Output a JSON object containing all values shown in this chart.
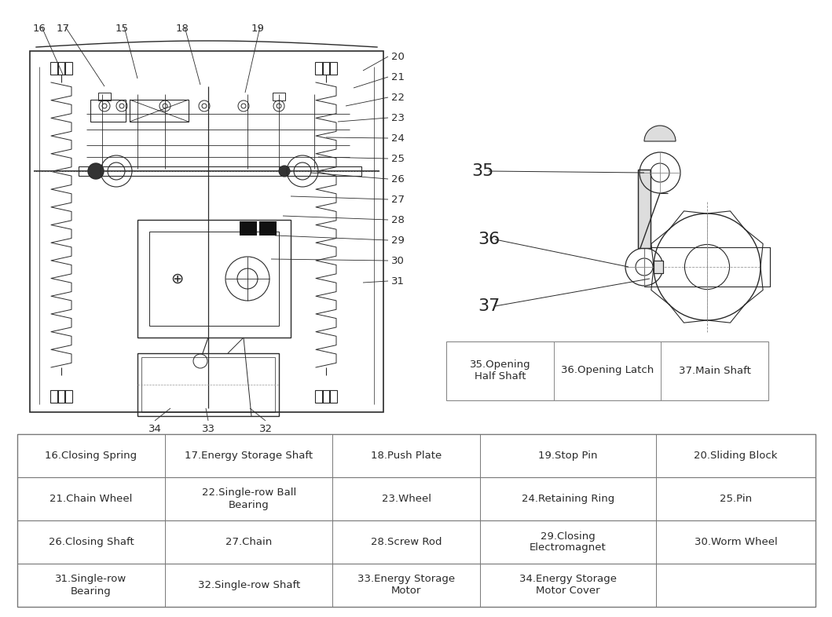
{
  "bg_color": "#ffffff",
  "line_color": "#2a2a2a",
  "table_border_color": "#777777",
  "fig_width": 10.59,
  "fig_height": 7.86,
  "table": {
    "rows": [
      [
        "16.Closing Spring",
        "17.Energy Storage Shaft",
        "18.Push Plate",
        "19.Stop Pin",
        "20.Sliding Block"
      ],
      [
        "21.Chain Wheel",
        "22.Single-row Ball\nBearing",
        "23.Wheel",
        "24.Retaining Ring",
        "25.Pin"
      ],
      [
        "26.Closing Shaft",
        "27.Chain",
        "28.Screw Rod",
        "29.Closing\nElectromagnet",
        "30.Worm Wheel"
      ],
      [
        "31.Single-row\nBearing",
        "32.Single-row Shaft",
        "33.Energy Storage\nMotor",
        "34.Energy Storage\nMotor Cover",
        ""
      ]
    ],
    "font_size": 9.5
  },
  "small_table": {
    "cells": [
      "35.Opening\nHalf Shaft",
      "36.Opening Latch",
      "37.Main Shaft"
    ],
    "font_size": 9.5
  }
}
